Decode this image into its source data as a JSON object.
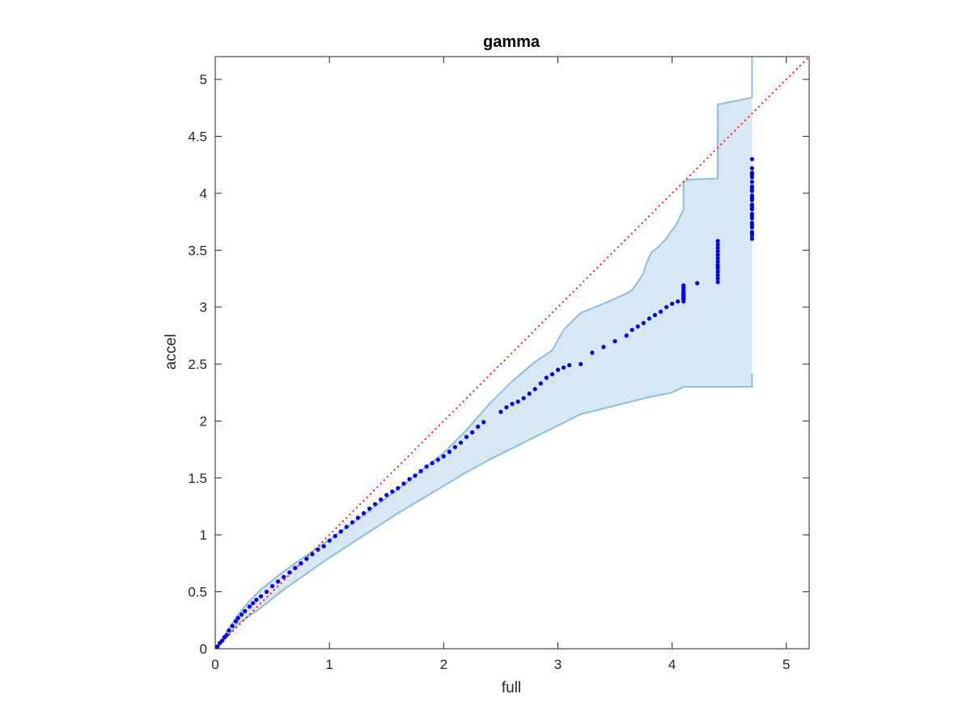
{
  "chart_data": {
    "type": "scatter",
    "title": "gamma",
    "xlabel": "full",
    "ylabel": "accel",
    "xlim": [
      0,
      5.2
    ],
    "ylim": [
      0,
      5.2
    ],
    "xticks": [
      0,
      1,
      2,
      3,
      4,
      5
    ],
    "xtick_labels": [
      "0",
      "1",
      "2",
      "3",
      "4",
      "5"
    ],
    "yticks": [
      0,
      0.5,
      1,
      1.5,
      2,
      2.5,
      3,
      3.5,
      4,
      4.5,
      5
    ],
    "ytick_labels": [
      "0",
      "0.5",
      "1",
      "1.5",
      "2",
      "2.5",
      "3",
      "3.5",
      "4",
      "4.5",
      "5"
    ],
    "grid": false,
    "legend": "none",
    "colors": {
      "points": "#0000ee",
      "reference_line": "#ff0000",
      "band_fill": "#d7e7f4",
      "band_edge": "#8bbde0",
      "axes": "#262626"
    },
    "reference_line": {
      "style": "dotted",
      "x": [
        0,
        5.2
      ],
      "y": [
        0,
        5.2
      ]
    },
    "band": {
      "upper": [
        [
          0,
          0
        ],
        [
          0.05,
          0.05
        ],
        [
          0.1,
          0.15
        ],
        [
          0.2,
          0.3
        ],
        [
          0.3,
          0.42
        ],
        [
          0.4,
          0.52
        ],
        [
          0.5,
          0.6
        ],
        [
          0.6,
          0.68
        ],
        [
          0.7,
          0.75
        ],
        [
          0.8,
          0.82
        ],
        [
          0.9,
          0.89
        ],
        [
          1,
          0.96
        ],
        [
          1.2,
          1.1
        ],
        [
          1.4,
          1.25
        ],
        [
          1.6,
          1.4
        ],
        [
          1.8,
          1.56
        ],
        [
          2,
          1.72
        ],
        [
          2.2,
          1.92
        ],
        [
          2.4,
          2.15
        ],
        [
          2.6,
          2.35
        ],
        [
          2.8,
          2.52
        ],
        [
          2.95,
          2.62
        ],
        [
          3.05,
          2.8
        ],
        [
          3.2,
          2.95
        ],
        [
          3.4,
          3.03
        ],
        [
          3.6,
          3.12
        ],
        [
          3.65,
          3.15
        ],
        [
          3.7,
          3.22
        ],
        [
          3.75,
          3.3
        ],
        [
          3.78,
          3.4
        ],
        [
          3.82,
          3.48
        ],
        [
          3.88,
          3.53
        ],
        [
          3.9,
          3.55
        ],
        [
          3.95,
          3.6
        ],
        [
          3.98,
          3.65
        ],
        [
          4.02,
          3.7
        ],
        [
          4.05,
          3.75
        ],
        [
          4.08,
          3.82
        ],
        [
          4.1,
          3.85
        ],
        [
          4.1,
          4.1
        ],
        [
          4.15,
          4.12
        ],
        [
          4.4,
          4.13
        ],
        [
          4.4,
          4.78
        ],
        [
          4.7,
          4.84
        ],
        [
          4.7,
          5.2
        ]
      ],
      "lower": [
        [
          0,
          0
        ],
        [
          0.1,
          0.1
        ],
        [
          0.2,
          0.22
        ],
        [
          0.4,
          0.36
        ],
        [
          0.6,
          0.52
        ],
        [
          0.8,
          0.66
        ],
        [
          1,
          0.8
        ],
        [
          1.2,
          0.93
        ],
        [
          1.4,
          1.06
        ],
        [
          1.6,
          1.19
        ],
        [
          1.8,
          1.31
        ],
        [
          2,
          1.43
        ],
        [
          2.2,
          1.55
        ],
        [
          2.4,
          1.66
        ],
        [
          2.6,
          1.76
        ],
        [
          2.8,
          1.86
        ],
        [
          3,
          1.96
        ],
        [
          3.2,
          2.06
        ],
        [
          3.4,
          2.11
        ],
        [
          3.6,
          2.16
        ],
        [
          3.8,
          2.21
        ],
        [
          4,
          2.25
        ],
        [
          4.1,
          2.3
        ],
        [
          4.7,
          2.3
        ],
        [
          4.7,
          2.42
        ]
      ]
    },
    "series": [
      {
        "x": [
          0,
          0.02,
          0.04,
          0.06,
          0.08,
          0.1,
          0.12,
          0.15,
          0.18,
          0.2,
          0.23,
          0.26,
          0.3,
          0.33,
          0.36,
          0.4,
          0.45,
          0.5,
          0.55,
          0.6,
          0.65,
          0.7,
          0.75,
          0.8,
          0.85,
          0.9,
          0.95,
          1.0,
          1.05,
          1.1,
          1.15,
          1.2,
          1.25,
          1.3,
          1.35,
          1.4,
          1.45,
          1.5,
          1.55,
          1.6,
          1.65,
          1.7,
          1.75,
          1.8,
          1.85,
          1.9,
          1.95,
          2.0,
          2.05,
          2.1,
          2.15,
          2.2,
          2.25,
          2.3,
          2.35,
          2.5,
          2.55,
          2.6,
          2.65,
          2.7,
          2.75,
          2.8,
          2.85,
          2.9,
          2.95,
          3.0,
          3.05,
          3.1,
          3.2,
          3.3,
          3.4,
          3.5,
          3.6,
          3.65,
          3.7,
          3.75,
          3.8,
          3.85,
          3.9,
          3.95,
          4.0,
          4.05,
          4.1,
          4.1,
          4.1,
          4.1,
          4.1,
          4.1,
          4.1,
          4.1,
          4.1,
          4.1,
          4.1,
          4.22,
          4.4,
          4.4,
          4.4,
          4.4,
          4.4,
          4.4,
          4.4,
          4.4,
          4.4,
          4.4,
          4.4,
          4.4,
          4.4,
          4.4,
          4.7,
          4.7,
          4.7,
          4.7,
          4.7,
          4.7,
          4.7,
          4.7,
          4.7,
          4.7,
          4.7,
          4.7,
          4.7,
          4.7,
          4.7,
          4.7,
          4.7,
          4.7,
          4.7,
          4.7,
          4.7,
          4.7,
          4.7,
          4.7,
          4.7
        ],
        "y": [
          0,
          0.02,
          0.05,
          0.07,
          0.1,
          0.12,
          0.16,
          0.2,
          0.24,
          0.27,
          0.3,
          0.33,
          0.37,
          0.4,
          0.43,
          0.46,
          0.5,
          0.55,
          0.59,
          0.63,
          0.67,
          0.71,
          0.75,
          0.79,
          0.83,
          0.87,
          0.9,
          0.95,
          0.99,
          1.03,
          1.07,
          1.11,
          1.15,
          1.19,
          1.23,
          1.27,
          1.31,
          1.35,
          1.38,
          1.41,
          1.45,
          1.49,
          1.52,
          1.56,
          1.6,
          1.63,
          1.66,
          1.69,
          1.73,
          1.77,
          1.81,
          1.86,
          1.9,
          1.95,
          1.99,
          2.08,
          2.12,
          2.15,
          2.17,
          2.2,
          2.24,
          2.28,
          2.33,
          2.38,
          2.41,
          2.45,
          2.47,
          2.49,
          2.5,
          2.6,
          2.65,
          2.7,
          2.75,
          2.8,
          2.83,
          2.86,
          2.9,
          2.93,
          2.96,
          3.0,
          3.03,
          3.05,
          3.05,
          3.07,
          3.09,
          3.11,
          3.13,
          3.15,
          3.17,
          3.19,
          3.12,
          3.08,
          3.1,
          3.21,
          3.22,
          3.25,
          3.28,
          3.31,
          3.34,
          3.37,
          3.4,
          3.43,
          3.46,
          3.49,
          3.52,
          3.55,
          3.58,
          3.35,
          3.6,
          3.63,
          3.66,
          3.7,
          3.74,
          3.78,
          3.82,
          3.86,
          3.9,
          3.94,
          3.98,
          4.02,
          4.06,
          4.1,
          4.14,
          4.18,
          4.3,
          4.22,
          3.65,
          3.72,
          3.8,
          3.88,
          3.96,
          4.04,
          4.16
        ]
      }
    ]
  }
}
